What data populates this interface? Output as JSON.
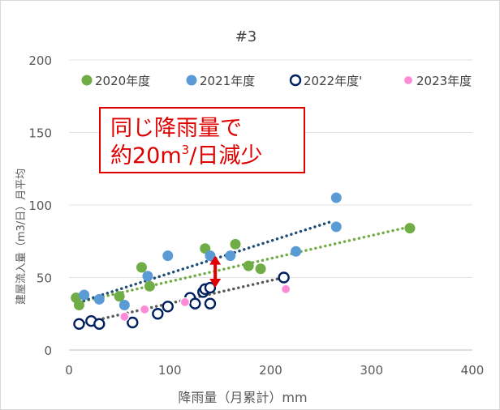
{
  "chart_data": {
    "type": "scatter",
    "title": "#3",
    "xlabel": "降雨量（月累計）mm",
    "ylabel": "建屋流入量（m3/日）月平均",
    "xlim": [
      0,
      400
    ],
    "ylim": [
      0,
      200
    ],
    "x_ticks": [
      "0",
      "100",
      "200",
      "300",
      "400"
    ],
    "y_ticks": [
      "0",
      "50",
      "100",
      "150",
      "200"
    ],
    "grid": "horizontal",
    "legend_position": "top",
    "series": [
      {
        "name": "2020年度",
        "color": "#70ad47",
        "marker": "filled-circle",
        "points": [
          [
            7,
            36
          ],
          [
            10,
            31
          ],
          [
            50,
            37
          ],
          [
            72,
            57
          ],
          [
            80,
            44
          ],
          [
            135,
            70
          ],
          [
            165,
            73
          ],
          [
            178,
            58
          ],
          [
            190,
            56
          ],
          [
            338,
            84
          ]
        ],
        "trendline": {
          "style": "dotted",
          "from": [
            10,
            33
          ],
          "to": [
            338,
            85
          ]
        }
      },
      {
        "name": "2021年度",
        "color": "#5b9bd5",
        "marker": "filled-circle",
        "points": [
          [
            15,
            38
          ],
          [
            30,
            35
          ],
          [
            55,
            31
          ],
          [
            78,
            51
          ],
          [
            98,
            65
          ],
          [
            140,
            65
          ],
          [
            160,
            65
          ],
          [
            225,
            68
          ],
          [
            265,
            105
          ],
          [
            265,
            85
          ]
        ],
        "trendline": {
          "style": "dotted",
          "color": "#1f4e79",
          "from": [
            10,
            33
          ],
          "to": [
            262,
            89
          ]
        }
      },
      {
        "name": "2022年度'",
        "color": "#002060",
        "marker": "hollow-circle",
        "points": [
          [
            10,
            18
          ],
          [
            22,
            20
          ],
          [
            30,
            18
          ],
          [
            63,
            19
          ],
          [
            88,
            25
          ],
          [
            98,
            30
          ],
          [
            120,
            36
          ],
          [
            125,
            32
          ],
          [
            133,
            40
          ],
          [
            135,
            42
          ],
          [
            140,
            32
          ],
          [
            140,
            43
          ],
          [
            213,
            50
          ]
        ],
        "trendline": {
          "style": "dotted",
          "color": "#5a5a5a",
          "from": [
            10,
            18
          ],
          "to": [
            213,
            50
          ]
        }
      },
      {
        "name": "2023年度",
        "color": "#ff66cc",
        "marker": "pink-circle",
        "points": [
          [
            55,
            23
          ],
          [
            75,
            28
          ],
          [
            115,
            33
          ],
          [
            215,
            42
          ]
        ]
      }
    ],
    "annotation": {
      "line1": "同じ降雨量で",
      "line2_prefix": "約20m",
      "line2_sup": "3",
      "line2_suffix": "/日減少",
      "arrow": {
        "x": 145,
        "y_top": 65,
        "y_bottom": 43,
        "color": "#e00000"
      }
    }
  }
}
